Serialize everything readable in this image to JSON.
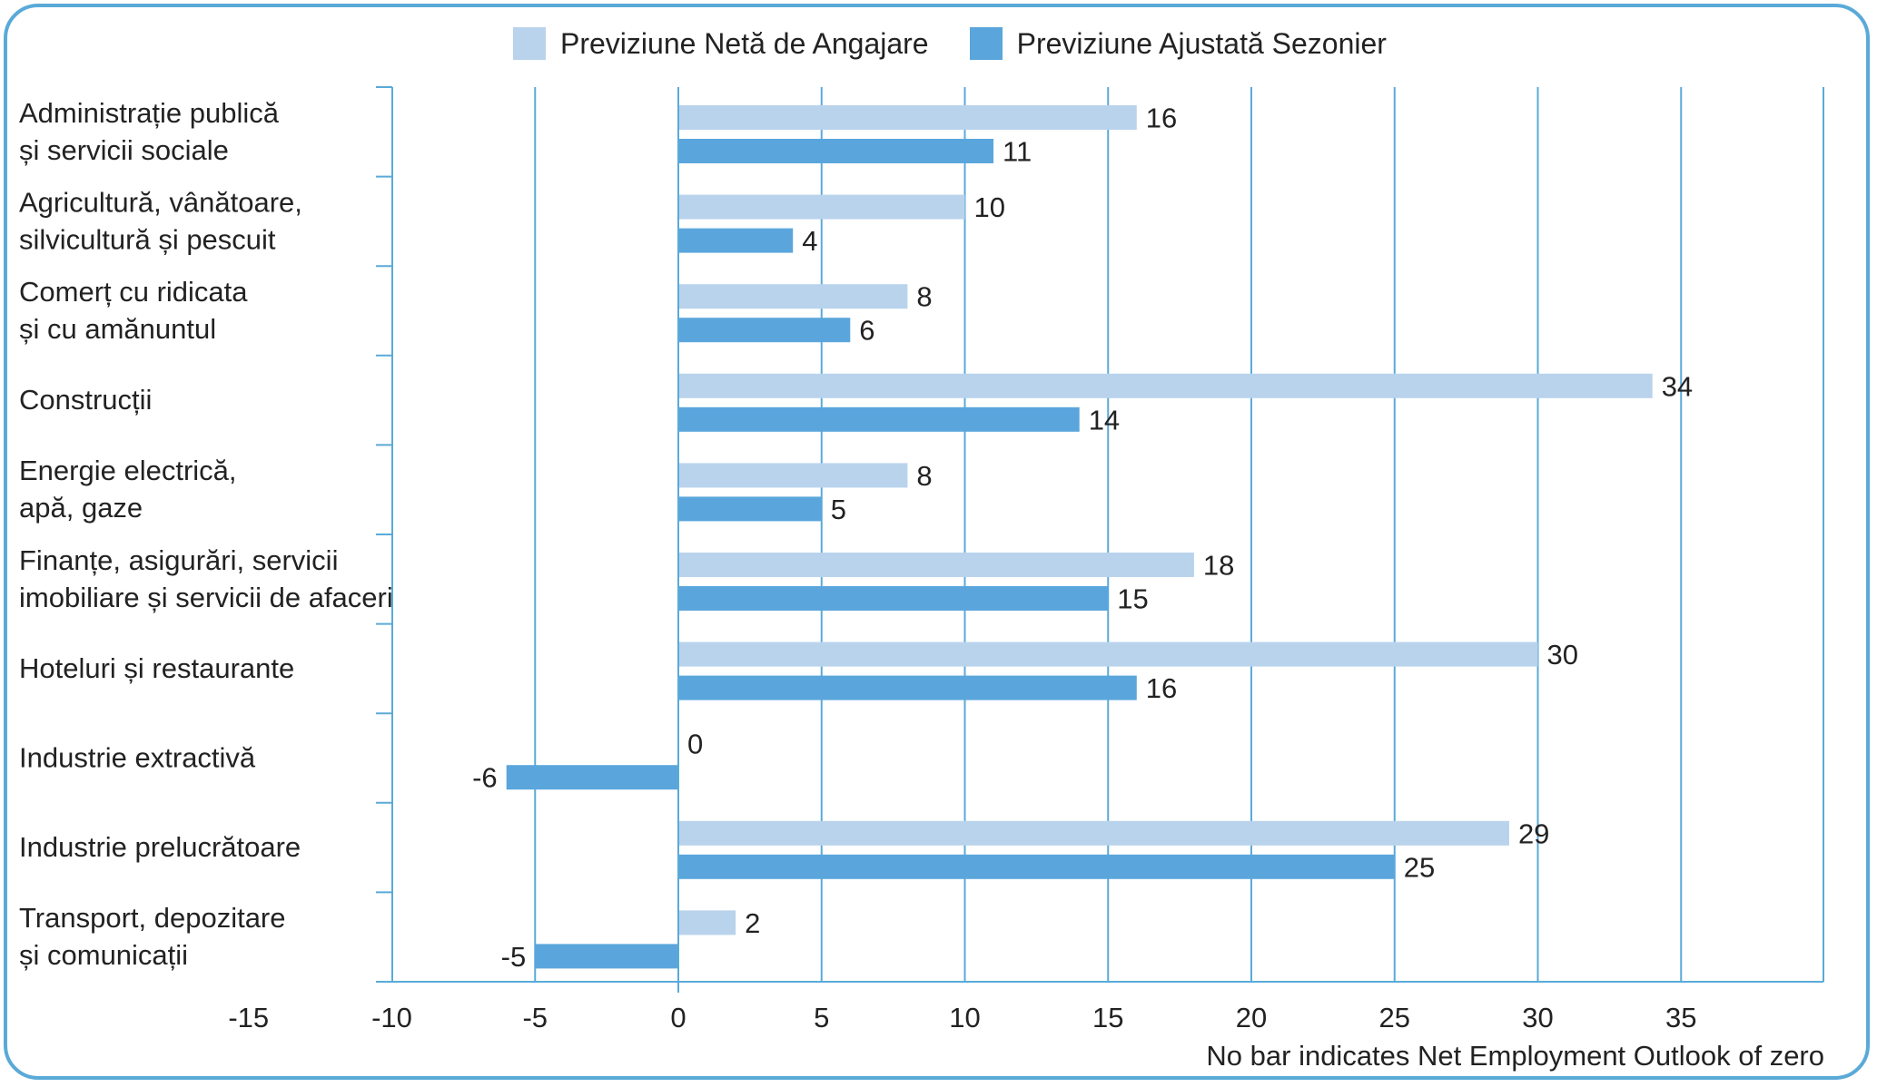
{
  "legend": {
    "net_label": "Previziune Netă de Angajare",
    "adj_label": "Previziune Ajustată Sezonier"
  },
  "note": "No bar indicates Net Employment Outlook of zero",
  "colors": {
    "frame": "#5aaad8",
    "net": "#b9d3ec",
    "adj": "#5aa6dc",
    "grid": "#5aaad8",
    "text": "#222222"
  },
  "chart_data": {
    "type": "bar",
    "orientation": "horizontal",
    "categories": [
      [
        "Administrație publică",
        "și servicii sociale"
      ],
      [
        "Agricultură, vânătoare,",
        "silvicultură și pescuit"
      ],
      [
        "Comerț cu ridicata",
        "și cu amănuntul"
      ],
      [
        "Construcții"
      ],
      [
        "Energie electrică,",
        "apă, gaze"
      ],
      [
        "Finanțe, asigurări, servicii",
        "imobiliare și servicii de afaceri"
      ],
      [
        "Hoteluri și restaurante"
      ],
      [
        "Industrie extractivă"
      ],
      [
        "Industrie prelucrătoare"
      ],
      [
        "Transport, depozitare",
        "și comunicații"
      ]
    ],
    "series": [
      {
        "name": "Previziune Netă de Angajare",
        "values": [
          16,
          10,
          8,
          34,
          8,
          18,
          30,
          0,
          29,
          2
        ]
      },
      {
        "name": "Previziune Ajustată Sezonier",
        "values": [
          11,
          4,
          6,
          14,
          5,
          15,
          16,
          -6,
          25,
          -5
        ]
      }
    ],
    "x_ticks": [
      -15,
      -10,
      -5,
      0,
      5,
      10,
      15,
      20,
      25,
      30,
      35
    ],
    "xlim": [
      -10,
      40
    ],
    "grid": true,
    "legend_position": "top"
  }
}
